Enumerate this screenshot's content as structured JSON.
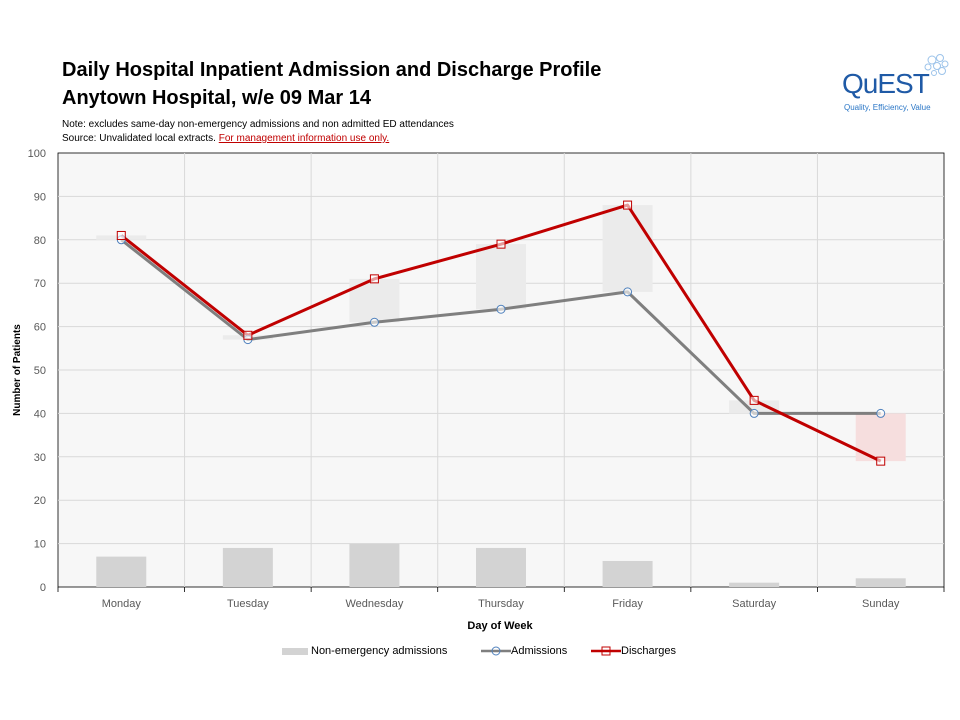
{
  "header": {
    "title_line1": "Daily Hospital Inpatient Admission and Discharge Profile",
    "title_line2": "Anytown Hospital, w/e 09 Mar 14",
    "note": "Note: excludes same-day non-emergency admissions and non admitted ED attendances",
    "source_prefix": "Source: Unvalidated local extracts. ",
    "source_warning": "For management information use only."
  },
  "logo": {
    "name": "QuEST",
    "tagline": "Quality, Efficiency, Value"
  },
  "colors": {
    "admissions": "#7f7f7f",
    "discharges": "#c00000",
    "non_emergency": "#d3d3d3",
    "gap_positive": "#ebebeb",
    "gap_negative": "#f6dede",
    "plot_bg": "#f7f7f7",
    "grid": "#d9d9d9"
  },
  "chart_data": {
    "type": "line",
    "title": "Daily Hospital Inpatient Admission and Discharge Profile",
    "categories": [
      "Monday",
      "Tuesday",
      "Wednesday",
      "Thursday",
      "Friday",
      "Saturday",
      "Sunday"
    ],
    "series": [
      {
        "name": "Non-emergency admissions",
        "kind": "bar",
        "values": [
          7,
          9,
          10,
          9,
          6,
          1,
          2
        ]
      },
      {
        "name": "Admissions",
        "kind": "line",
        "marker": "circle",
        "values": [
          80,
          57,
          61,
          64,
          68,
          40,
          40
        ]
      },
      {
        "name": "Discharges",
        "kind": "line",
        "marker": "square",
        "values": [
          81,
          58,
          71,
          79,
          88,
          43,
          29
        ]
      }
    ],
    "xlabel": "Day of Week",
    "ylabel": "Number of Patients",
    "ylim": [
      0,
      100
    ],
    "yticks": [
      0,
      10,
      20,
      30,
      40,
      50,
      60,
      70,
      80,
      90,
      100
    ],
    "grid": true,
    "legend": "bottom"
  }
}
